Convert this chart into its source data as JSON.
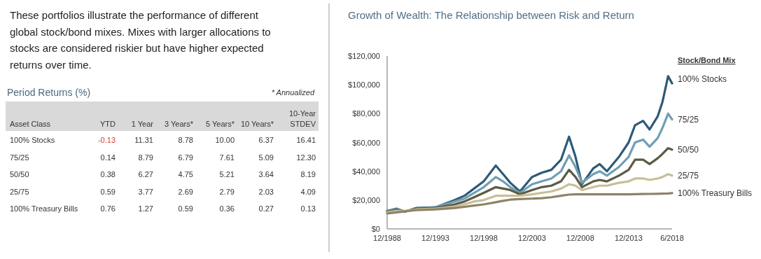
{
  "chart_data": [
    {
      "type": "other",
      "title": "Period Returns (%)",
      "subtitle": "These portfolios illustrate the performance of different global stock/bond mixes. Mixes with larger allocations to stocks are considered riskier but have higher expected returns over time.",
      "xlabel": "Asset Class",
      "annotations": [
        "* Annualized"
      ],
      "categories": [
        "100% Stocks",
        "75/25",
        "50/50",
        "25/75",
        "100% Treasury Bills"
      ],
      "data_labels": true,
      "series": [
        {
          "name": "YTD",
          "colors": [
            "#d0403a",
            "#333333",
            "#333333",
            "#333333",
            "#333333"
          ],
          "values": [
            -0.13,
            0.14,
            0.38,
            0.59,
            0.76
          ],
          "value_labels": [
            "-0.13",
            "0.14",
            "0.38",
            "0.59",
            "0.76"
          ]
        },
        {
          "name": "1 Year",
          "color": "#333333",
          "values": [
            11.31,
            8.79,
            6.27,
            3.77,
            1.27
          ],
          "value_labels": [
            "11.31",
            "8.79",
            "6.27",
            "3.77",
            "1.27"
          ]
        },
        {
          "name": "3 Years*",
          "color": "#333333",
          "values": [
            8.78,
            6.79,
            4.75,
            2.69,
            0.59
          ],
          "value_labels": [
            "8.78",
            "6.79",
            "4.75",
            "2.69",
            "0.59"
          ]
        },
        {
          "name": "5 Years*",
          "color": "#333333",
          "values": [
            10.0,
            7.61,
            5.21,
            2.79,
            0.36
          ],
          "value_labels": [
            "10.00",
            "7.61",
            "5.21",
            "2.79",
            "0.36"
          ]
        },
        {
          "name": "10 Years*",
          "color": "#333333",
          "values": [
            6.37,
            5.09,
            3.64,
            2.03,
            0.27
          ],
          "value_labels": [
            "6.37",
            "5.09",
            "3.64",
            "2.03",
            "0.27"
          ]
        },
        {
          "name": "10-Year STDEV",
          "color": "#333333",
          "values": [
            16.41,
            12.3,
            8.19,
            4.09,
            0.13
          ],
          "value_labels": [
            "16.41",
            "12.30",
            "8.19",
            "4.09",
            "0.13"
          ]
        }
      ]
    },
    {
      "type": "line",
      "title": "Growth of Wealth: The Relationship between Risk and Return",
      "legend_title": "Stock/Bond Mix",
      "legend": "right",
      "grid": false,
      "x": [
        "1988-12",
        "1989-12",
        "1990-10",
        "1991-12",
        "1993-12",
        "1995-12",
        "1996-12",
        "1997-12",
        "1998-12",
        "2000-03",
        "2000-12",
        "2001-09",
        "2002-09",
        "2003-12",
        "2004-12",
        "2005-12",
        "2006-12",
        "2007-10",
        "2008-06",
        "2009-02",
        "2010-04",
        "2010-12",
        "2011-09",
        "2012-12",
        "2013-12",
        "2014-08",
        "2015-06",
        "2016-02",
        "2016-12",
        "2017-06",
        "2018-01",
        "2018-06"
      ],
      "xlim": [
        "1988-12",
        "2018-06"
      ],
      "xticks": [
        {
          "value": "1988-12",
          "label": "12/1988"
        },
        {
          "value": "1993-12",
          "label": "12/1993"
        },
        {
          "value": "1998-12",
          "label": "12/1998"
        },
        {
          "value": "2003-12",
          "label": "12/2003"
        },
        {
          "value": "2008-12",
          "label": "12/2008"
        },
        {
          "value": "2013-12",
          "label": "12/2013"
        },
        {
          "value": "2018-06",
          "label": "6/2018"
        }
      ],
      "ylim": [
        0,
        120000
      ],
      "yticks": [
        {
          "value": 0,
          "label": "$0"
        },
        {
          "value": 20000,
          "label": "$20,000"
        },
        {
          "value": 40000,
          "label": "$40,000"
        },
        {
          "value": 60000,
          "label": "$60,000"
        },
        {
          "value": 80000,
          "label": "$80,000"
        },
        {
          "value": 100000,
          "label": "$100,000"
        },
        {
          "value": 120000,
          "label": "$120,000"
        }
      ],
      "series": [
        {
          "name": "100% Stocks",
          "color": "#2e5a78",
          "values": [
            12500,
            14000,
            12000,
            14500,
            15000,
            20000,
            23000,
            28000,
            33000,
            44000,
            38000,
            32000,
            26000,
            36000,
            39000,
            41000,
            48000,
            64000,
            50000,
            31000,
            42000,
            45000,
            40000,
            50000,
            60000,
            72000,
            75000,
            69000,
            78000,
            88000,
            106000,
            101000
          ]
        },
        {
          "name": "75/25",
          "color": "#6f9fb4",
          "values": [
            12500,
            13500,
            12000,
            14000,
            15000,
            19000,
            21000,
            25000,
            29000,
            36000,
            33000,
            29000,
            25000,
            31000,
            33000,
            35000,
            40000,
            51000,
            43000,
            32000,
            38000,
            40000,
            37000,
            43000,
            50000,
            60000,
            62000,
            57000,
            63000,
            70000,
            80000,
            76000
          ]
        },
        {
          "name": "50/50",
          "color": "#5c5a44",
          "values": [
            12000,
            13000,
            12000,
            14000,
            14500,
            17000,
            19000,
            22000,
            25000,
            29000,
            28000,
            27000,
            24000,
            27000,
            29000,
            30000,
            33000,
            41000,
            36000,
            29000,
            33000,
            34000,
            33000,
            37000,
            41000,
            48000,
            48000,
            45000,
            49000,
            52000,
            56000,
            55000
          ]
        },
        {
          "name": "25/75",
          "color": "#c8bf98",
          "values": [
            11500,
            12500,
            12500,
            13500,
            14000,
            15500,
            17000,
            19000,
            20000,
            23000,
            23000,
            23000,
            23000,
            24000,
            25000,
            26000,
            28000,
            31000,
            30000,
            27000,
            29000,
            30000,
            30000,
            32000,
            33000,
            35000,
            35000,
            34000,
            35000,
            36000,
            38000,
            37000
          ]
        },
        {
          "name": "100% Treasury Bills",
          "color": "#8c8466",
          "values": [
            10700,
            11500,
            12200,
            13000,
            13500,
            14500,
            15300,
            16200,
            17000,
            18500,
            19500,
            20300,
            20700,
            21000,
            21300,
            22000,
            23000,
            23800,
            24000,
            24000,
            24000,
            24000,
            24000,
            24000,
            24000,
            24100,
            24200,
            24300,
            24400,
            24500,
            24600,
            24800
          ]
        }
      ]
    }
  ]
}
